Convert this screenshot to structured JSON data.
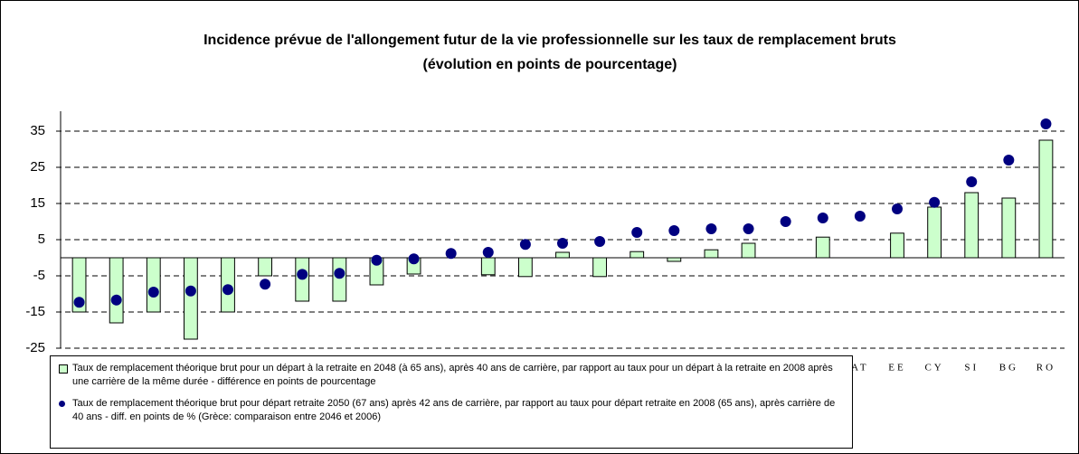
{
  "chart_data": {
    "type": "bar-dot",
    "title": "Incidence prévue de l'allongement futur de la vie professionnelle sur les taux de remplacement bruts",
    "subtitle": "(évolution en points de pourcentage)",
    "categories": [
      null,
      null,
      null,
      null,
      null,
      null,
      null,
      null,
      null,
      null,
      null,
      null,
      null,
      null,
      null,
      null,
      null,
      null,
      null,
      null,
      null,
      "AT",
      "EE",
      "CY",
      "SI",
      "BG",
      "RO"
    ],
    "series": [
      {
        "name": "Taux de remplacement théorique brut pour un départ à la retraite en 2048 (à 65 ans), après 40 ans de carrière, par rapport au taux pour un départ à la retraite en 2008 après une carrière de la même durée - différence en points de pourcentage",
        "kind": "bar",
        "color": "#ccffcc",
        "values": [
          -15,
          -18,
          -15,
          -22.5,
          -15,
          -5,
          -12,
          -12,
          -7.5,
          -4.5,
          null,
          -4.7,
          -5.2,
          1.5,
          -5.2,
          1.7,
          -1,
          2.2,
          4,
          null,
          5.7,
          null,
          6.8,
          14,
          18,
          16.5,
          32.5
        ]
      },
      {
        "name": "Taux de remplacement théorique brut pour départ retraite 2050 (67 ans) après 42 ans de carrière, par rapport au taux pour départ retraite en 2008 (65 ans), après carrière de 40 ans - diff. en points de %  (Grèce: comparaison entre 2046 et 2006)",
        "kind": "dot",
        "color": "#000080",
        "values": [
          -12.3,
          -11.7,
          -9.5,
          -9.2,
          -8.8,
          -7.3,
          -4.6,
          -4.3,
          -0.7,
          -0.3,
          1.2,
          1.5,
          3.7,
          4,
          4.5,
          7,
          7.5,
          8,
          8,
          10,
          11,
          11.5,
          13.5,
          15.3,
          21,
          27,
          37
        ]
      }
    ],
    "ylim": [
      -25,
      40.5
    ],
    "yticks": [
      -25,
      -15,
      -5,
      5,
      15,
      25,
      35
    ],
    "grid": true
  }
}
